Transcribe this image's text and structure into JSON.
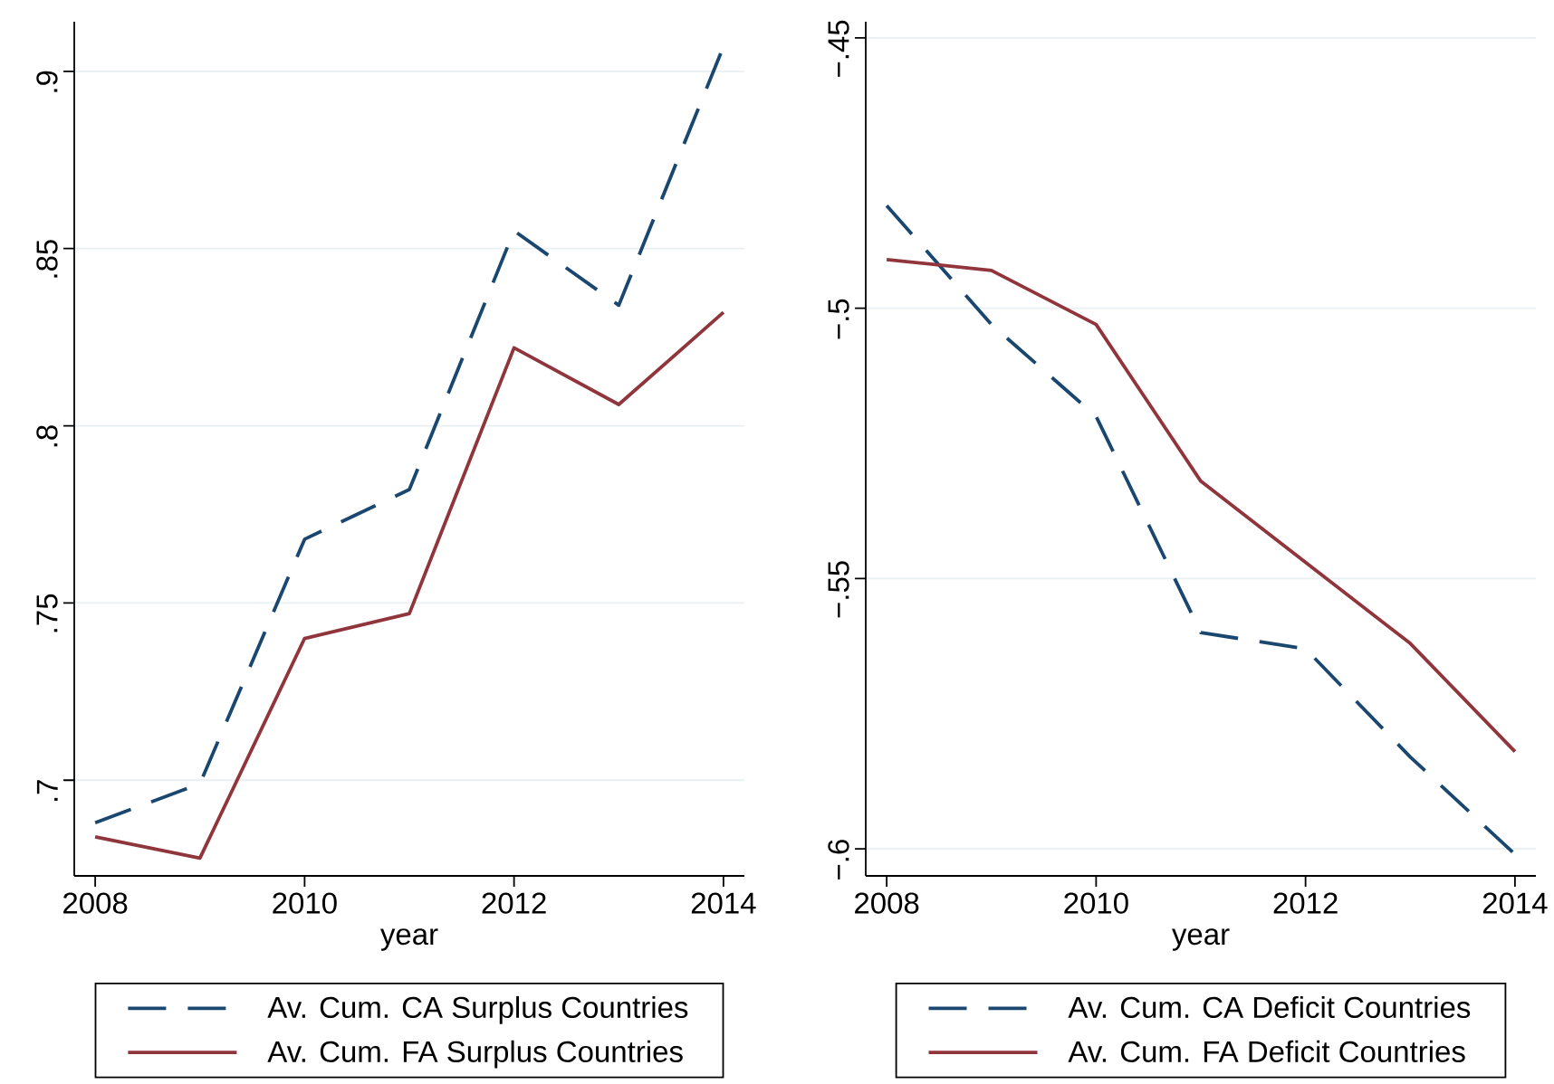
{
  "chart_data": [
    {
      "type": "line",
      "xlabel": "year",
      "x": [
        2008,
        2009,
        2010,
        2011,
        2012,
        2013,
        2014
      ],
      "series": [
        {
          "name": "Av. Cum. CA Surplus Countries",
          "color": "#1a476f",
          "line_style": "dashed",
          "values": [
            0.688,
            0.699,
            0.768,
            0.782,
            0.855,
            0.834,
            0.907
          ]
        },
        {
          "name": "Av. Cum. FA Surplus Countries",
          "color": "#90353b",
          "line_style": "solid",
          "values": [
            0.684,
            0.678,
            0.74,
            0.747,
            0.822,
            0.806,
            0.832
          ]
        }
      ],
      "xlim": [
        2007.8,
        2014.2
      ],
      "ylim": [
        0.673,
        0.914
      ],
      "xticks": [
        2008,
        2010,
        2012,
        2014
      ],
      "yticks": [
        {
          "value": 0.7,
          "label": ".7"
        },
        {
          "value": 0.75,
          "label": ".75"
        },
        {
          "value": 0.8,
          "label": ".8"
        },
        {
          "value": 0.85,
          "label": ".85"
        },
        {
          "value": 0.9,
          "label": ".9"
        }
      ],
      "grid": "y",
      "legend": "bottom"
    },
    {
      "type": "line",
      "xlabel": "year",
      "x": [
        2008,
        2009,
        2010,
        2011,
        2012,
        2013,
        2014
      ],
      "series": [
        {
          "name": "Av. Cum. CA Deficit Countries",
          "color": "#1a476f",
          "line_style": "dashed",
          "values": [
            -0.481,
            -0.503,
            -0.52,
            -0.56,
            -0.563,
            -0.583,
            -0.601
          ]
        },
        {
          "name": "Av. Cum. FA Deficit Countries",
          "color": "#90353b",
          "line_style": "solid",
          "values": [
            -0.491,
            -0.493,
            -0.503,
            -0.532,
            -0.547,
            -0.562,
            -0.582
          ]
        }
      ],
      "xlim": [
        2007.8,
        2014.2
      ],
      "ylim": [
        -0.605,
        -0.447
      ],
      "xticks": [
        2008,
        2010,
        2012,
        2014
      ],
      "yticks": [
        {
          "value": -0.6,
          "label": "−.6"
        },
        {
          "value": -0.55,
          "label": "−.55"
        },
        {
          "value": -0.5,
          "label": "−.5"
        },
        {
          "value": -0.45,
          "label": "−.45"
        }
      ],
      "grid": "y",
      "legend": "bottom"
    }
  ]
}
